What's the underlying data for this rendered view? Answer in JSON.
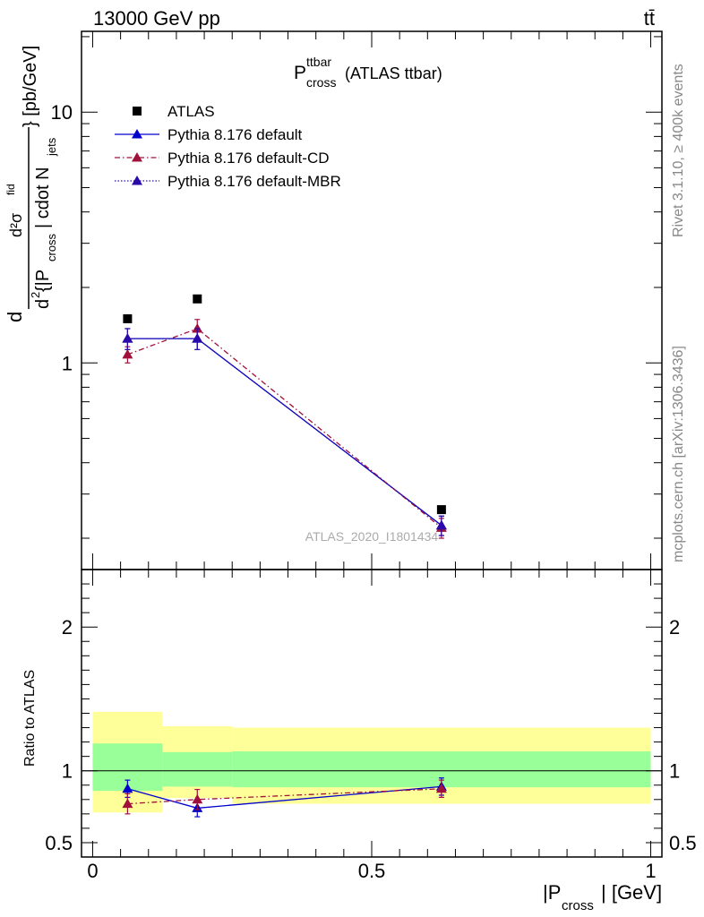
{
  "header": {
    "energy_label": "13000 GeV pp",
    "process_label": "tt̄",
    "side_text_top": "Rivet 3.1.10, ≥ 400k events",
    "side_text_bottom": "mcplots.cern.ch [arXiv:1306.3436]",
    "watermark": "ATLAS_2020_I1801434"
  },
  "chart_data": [
    {
      "type": "line",
      "panel": "main",
      "title": {
        "main": "P",
        "sup": "ttbar",
        "sub": "cross",
        "suffix": " (ATLAS ttbar)"
      },
      "ylabel": {
        "num_d": "d",
        "num_sigma": "d²σ",
        "num_sigma_sup": "fid",
        "den_prefix": "d",
        "den_sup": "2",
        "den_text": " {|P",
        "den_sub": "cross",
        "den_text2": "| cdot N",
        "den_sub2": "jets",
        "unit": "} [pb/GeV]"
      },
      "ylog": true,
      "ylim": [
        0.15,
        21
      ],
      "xlim": [
        -0.02,
        1.02
      ],
      "yticks": [
        {
          "value": 1,
          "label": "1"
        },
        {
          "value": 10,
          "label": "10"
        }
      ],
      "legend_position": "top-left",
      "series": [
        {
          "name": "ATLAS",
          "color": "#000000",
          "marker": "square",
          "style": "none",
          "x": [
            0.0625,
            0.1875,
            0.625
          ],
          "y": [
            1.5,
            1.8,
            0.26
          ]
        },
        {
          "name": "Pythia 8.176 default",
          "color": "#0000cc",
          "marker": "triangle",
          "style": "solid",
          "x": [
            0.0625,
            0.1875,
            0.625
          ],
          "y": [
            1.25,
            1.25,
            0.225
          ],
          "err": [
            0.12,
            0.12,
            0.02
          ]
        },
        {
          "name": "Pythia 8.176 default-CD",
          "color": "#a0103a",
          "marker": "triangle",
          "style": "dashdot",
          "x": [
            0.0625,
            0.1875,
            0.625
          ],
          "y": [
            1.08,
            1.37,
            0.22
          ],
          "err": [
            0.08,
            0.12,
            0.02
          ]
        },
        {
          "name": "Pythia 8.176 default-MBR",
          "color": "#2a0aa8",
          "marker": "triangle",
          "style": "dotted",
          "x": [
            0.0625,
            0.1875,
            0.625
          ],
          "y": [
            1.25,
            1.25,
            0.225
          ],
          "err": [
            0.12,
            0.12,
            0.02
          ]
        }
      ]
    },
    {
      "type": "line",
      "panel": "ratio",
      "ylabel": "Ratio to ATLAS",
      "xlabel": {
        "pre": "|P",
        "sub": "cross",
        "post": "| [GeV]"
      },
      "ylim": [
        0.4,
        2.4
      ],
      "xlim": [
        -0.02,
        1.02
      ],
      "yticks": [
        {
          "value": 0.5,
          "label": "0.5"
        },
        {
          "value": 1,
          "label": "1"
        },
        {
          "value": 2,
          "label": "2"
        }
      ],
      "xticks": [
        {
          "value": 0,
          "label": "0"
        },
        {
          "value": 0.5,
          "label": "0.5"
        },
        {
          "value": 1,
          "label": "1"
        }
      ],
      "bands": [
        {
          "x0": 0.0,
          "x1": 0.125,
          "yellow": [
            0.71,
            1.41
          ],
          "green": [
            0.86,
            1.19
          ]
        },
        {
          "x0": 0.125,
          "x1": 0.25,
          "yellow": [
            0.81,
            1.31
          ],
          "green": [
            0.89,
            1.13
          ]
        },
        {
          "x0": 0.25,
          "x1": 1.0,
          "yellow": [
            0.77,
            1.3
          ],
          "green": [
            0.885,
            1.135
          ]
        }
      ],
      "series": [
        {
          "name": "Pythia 8.176 default",
          "color": "#0000cc",
          "marker": "triangle",
          "style": "solid",
          "x": [
            0.0625,
            0.1875,
            0.625
          ],
          "y": [
            0.875,
            0.74,
            0.89
          ],
          "err": [
            0.06,
            0.06,
            0.06
          ]
        },
        {
          "name": "Pythia 8.176 default-CD",
          "color": "#a0103a",
          "marker": "triangle",
          "style": "dashdot",
          "x": [
            0.0625,
            0.1875,
            0.625
          ],
          "y": [
            0.77,
            0.8,
            0.875
          ],
          "err": [
            0.07,
            0.07,
            0.06
          ]
        }
      ]
    }
  ]
}
